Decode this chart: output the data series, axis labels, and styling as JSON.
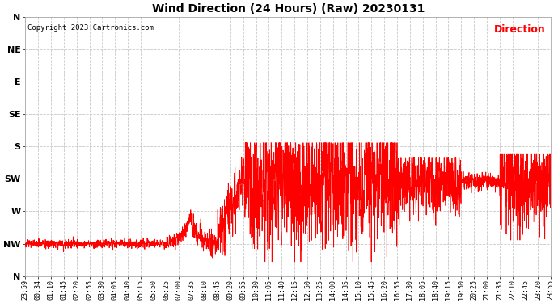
{
  "title": "Wind Direction (24 Hours) (Raw) 20230131",
  "copyright_text": "Copyright 2023 Cartronics.com",
  "legend_label": "Direction",
  "legend_color": "#ff0000",
  "background_color": "#ffffff",
  "grid_color": "#c8c8c8",
  "line_color": "#ff0000",
  "ytick_labels": [
    "N",
    "NW",
    "W",
    "SW",
    "S",
    "SE",
    "E",
    "NE",
    "N"
  ],
  "ytick_values": [
    360,
    315,
    270,
    225,
    180,
    135,
    90,
    45,
    0
  ],
  "xtick_labels": [
    "23:59",
    "00:34",
    "01:10",
    "01:45",
    "02:20",
    "02:55",
    "03:30",
    "04:05",
    "04:40",
    "05:15",
    "05:50",
    "06:25",
    "07:00",
    "07:35",
    "08:10",
    "08:45",
    "09:20",
    "09:55",
    "10:30",
    "11:05",
    "11:40",
    "12:15",
    "12:50",
    "13:25",
    "14:00",
    "14:35",
    "15:10",
    "15:45",
    "16:20",
    "16:55",
    "17:30",
    "18:05",
    "18:40",
    "19:15",
    "19:50",
    "20:25",
    "21:00",
    "21:35",
    "22:10",
    "22:45",
    "23:20",
    "23:55"
  ],
  "ymin": 0,
  "ymax": 360,
  "num_points": 2880,
  "seed": 42
}
